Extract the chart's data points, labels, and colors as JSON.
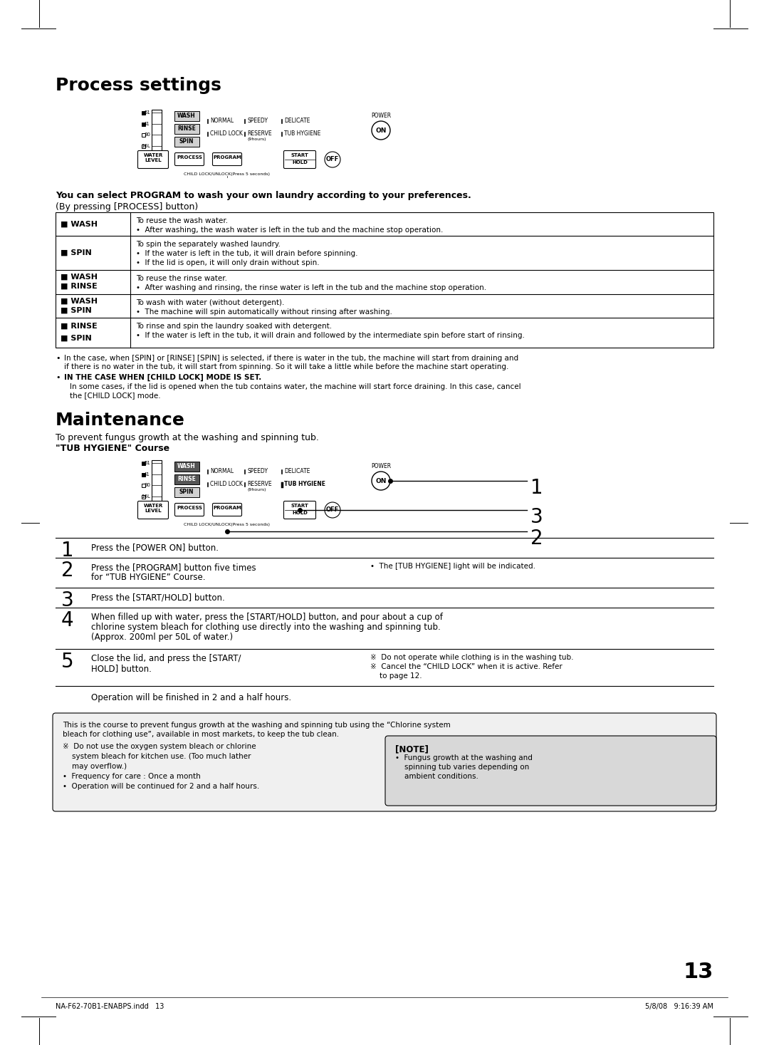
{
  "title_process": "Process settings",
  "title_maintenance": "Maintenance",
  "bg_color": "#ffffff",
  "page_number": "13",
  "footer_left": "NA-F62-70B1-ENABPS.indd   13",
  "footer_right": "5/8/08   9:16:39 AM",
  "process_bold_text": "You can select PROGRAM to wash your own laundry according to your preferences.",
  "process_sub_text": "(By pressing [PROCESS] button)",
  "table_rows": [
    {
      "label": "■ WASH",
      "text": "To reuse the wash water.\n•  After washing, the wash water is left in the tub and the machine stop operation."
    },
    {
      "label": "■ SPIN",
      "text": "To spin the separately washed laundry.\n•  If the water is left in the tub, it will drain before spinning.\n•  If the lid is open, it will only drain without spin."
    },
    {
      "label": "■ WASH\n■ RINSE",
      "text": "To reuse the rinse water.\n•  After washing and rinsing, the rinse water is left in the tub and the machine stop operation."
    },
    {
      "label": "■ WASH\n■ SPIN",
      "text": "To wash with water (without detergent).\n•  The machine will spin automatically without rinsing after washing."
    },
    {
      "label": "■ RINSE\n■ SPIN",
      "text": "To rinse and spin the laundry soaked with detergent.\n•  If the water is left in the tub, it will drain and followed by the intermediate spin before start of rinsing."
    }
  ],
  "bullet1_line1": "In the case, when [SPIN] or [RINSE] [SPIN] is selected, if there is water in the tub, the machine will start from draining and",
  "bullet1_line2": "if there is no water in the tub, it will start from spinning. So it will take a little while before the machine start operating.",
  "bullet2_title": "IN THE CASE WHEN [CHILD LOCK] MODE IS SET.",
  "bullet2_body_line1": "In some cases, if the lid is opened when the tub contains water, the machine will start force draining. In this case, cancel",
  "bullet2_body_line2": "the [CHILD LOCK] mode.",
  "maintenance_sub1": "To prevent fungus growth at the washing and spinning tub.",
  "maintenance_sub2": "\"TUB HYGIENE\" Course",
  "steps": [
    {
      "num": "1",
      "text": "Press the [POWER ON] button.",
      "note": ""
    },
    {
      "num": "2",
      "text": "Press the [PROGRAM] button five times\nfor “TUB HYGIENE” Course.",
      "note": "•  The [TUB HYGIENE] light will be indicated."
    },
    {
      "num": "3",
      "text": "Press the [START/HOLD] button.",
      "note": ""
    },
    {
      "num": "4",
      "text": "When filled up with water, press the [START/HOLD] button, and pour about a cup of\nchlorine system bleach for clothing use directly into the washing and spinning tub.\n(Approx. 200ml per 50L of water.)",
      "note": ""
    },
    {
      "num": "5",
      "text": "Close the lid, and press the [START/\nHOLD] button.",
      "note": "※  Do not operate while clothing is in the washing tub.\n※  Cancel the “CHILD LOCK” when it is active. Refer\n    to page 12."
    }
  ],
  "operation_note": "Operation will be finished in 2 and a half hours.",
  "box_intro": "This is the course to prevent fungus growth at the washing and spinning tub using the “Chlorine system\nbleach for clothing use”, available in most markets, to keep the tub clean.",
  "box_text_left_lines": [
    "※  Do not use the oxygen system bleach or chlorine",
    "    system bleach for kitchen use. (Too much lather",
    "    may overflow.)",
    "•  Frequency for care : Once a month",
    "•  Operation will be continued for 2 and a half hours."
  ],
  "box_note_title": "[NOTE]",
  "box_note_lines": [
    "•  Fungus growth at the washing and",
    "    spinning tub varies depending on",
    "    ambient conditions."
  ]
}
